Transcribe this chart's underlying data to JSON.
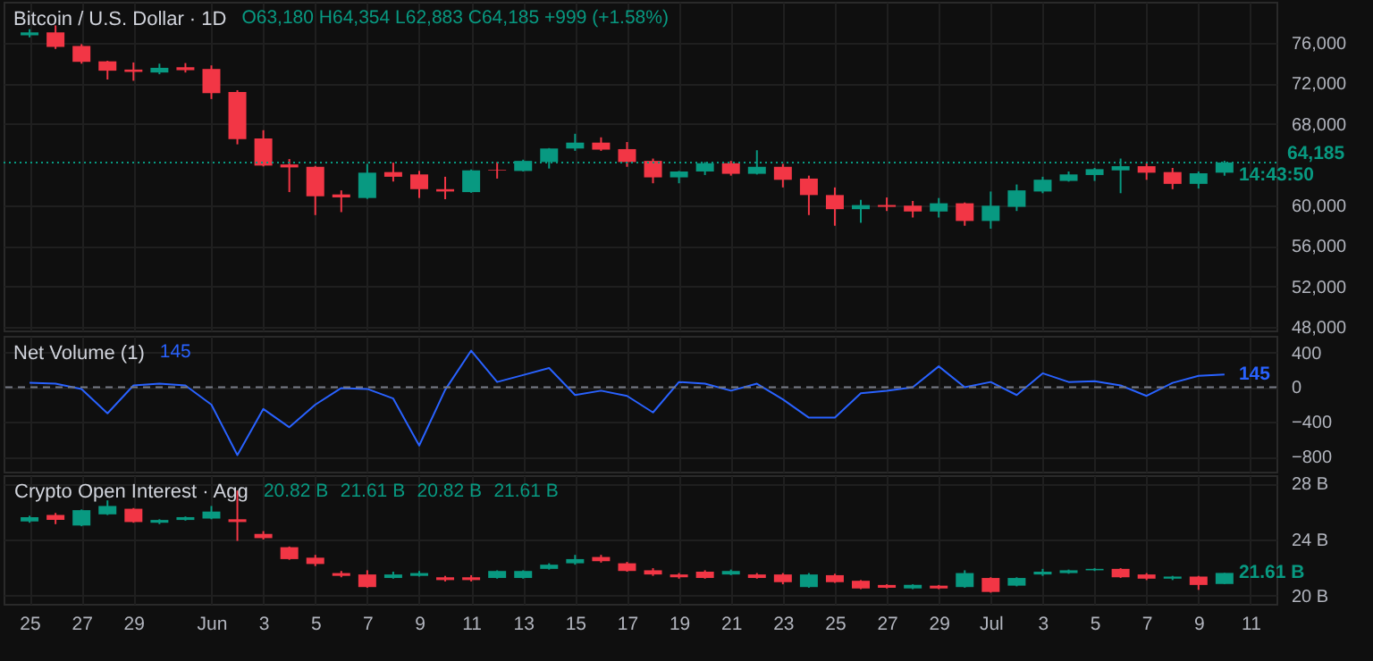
{
  "chart_data": [
    {
      "type": "candlestick",
      "title": "Bitcoin / U.S. Dollar · 1D",
      "annotations": [
        "O63,180 H64,354 L62,883 C64,185 +999 (+1.58%)",
        {
          "text": "14:43:50",
          "x": "--07-10",
          "y": 64185
        }
      ],
      "x": [
        "--05-25",
        "--05-26",
        "--05-27",
        "--05-28",
        "--05-29",
        "--05-30",
        "--05-31",
        "--06-01",
        "--06-02",
        "--06-03",
        "--06-04",
        "--06-05",
        "--06-06",
        "--06-07",
        "--06-08",
        "--06-09",
        "--06-10",
        "--06-11",
        "--06-12",
        "--06-13",
        "--06-14",
        "--06-15",
        "--06-16",
        "--06-17",
        "--06-18",
        "--06-19",
        "--06-20",
        "--06-21",
        "--06-22",
        "--06-23",
        "--06-24",
        "--06-25",
        "--06-26",
        "--06-27",
        "--06-28",
        "--06-29",
        "--06-30",
        "--07-01",
        "--07-02",
        "--07-03",
        "--07-04",
        "--07-05",
        "--07-06",
        "--07-07",
        "--07-08",
        "--07-09",
        "--07-10"
      ],
      "ohlc": [
        [
          76700,
          77300,
          76500,
          77000
        ],
        [
          77000,
          77680,
          75360,
          75550
        ],
        [
          75650,
          75830,
          73910,
          74090
        ],
        [
          74140,
          74200,
          72350,
          73220
        ],
        [
          73330,
          74030,
          72230,
          73100
        ],
        [
          73040,
          73910,
          72870,
          73500
        ],
        [
          73560,
          73970,
          73040,
          73270
        ],
        [
          73390,
          73740,
          70430,
          71010
        ],
        [
          71130,
          71300,
          65970,
          66490
        ],
        [
          66550,
          67360,
          63800,
          63880
        ],
        [
          63990,
          64520,
          61270,
          63700
        ],
        [
          63760,
          63850,
          59010,
          60860
        ],
        [
          61040,
          61440,
          59300,
          60750
        ],
        [
          60690,
          64050,
          60600,
          63180
        ],
        [
          63240,
          64170,
          62310,
          62780
        ],
        [
          63010,
          63360,
          60690,
          61560
        ],
        [
          61560,
          62780,
          60570,
          61330
        ],
        [
          61270,
          63500,
          61200,
          63410
        ],
        [
          63470,
          64230,
          62600,
          63410
        ],
        [
          63350,
          64460,
          63300,
          64340
        ],
        [
          64230,
          65600,
          63590,
          65560
        ],
        [
          65560,
          67010,
          65330,
          66140
        ],
        [
          66140,
          66660,
          65330,
          65450
        ],
        [
          65500,
          66200,
          63760,
          64230
        ],
        [
          64340,
          64570,
          62140,
          62720
        ],
        [
          62720,
          63350,
          62140,
          63300
        ],
        [
          63300,
          64230,
          62950,
          64110
        ],
        [
          64110,
          64340,
          62890,
          63070
        ],
        [
          63070,
          65390,
          63000,
          63760
        ],
        [
          63760,
          64050,
          61730,
          62480
        ],
        [
          62600,
          62890,
          59010,
          60980
        ],
        [
          60980,
          61730,
          57960,
          59590
        ],
        [
          59590,
          60510,
          58250,
          59990
        ],
        [
          60000,
          60740,
          59410,
          59820
        ],
        [
          59930,
          60400,
          58770,
          59360
        ],
        [
          59360,
          60690,
          58770,
          60170
        ],
        [
          60170,
          60250,
          57960,
          58430
        ],
        [
          58430,
          61330,
          57670,
          59930
        ],
        [
          59820,
          62020,
          59410,
          61440
        ],
        [
          61330,
          62780,
          61160,
          62490
        ],
        [
          62370,
          63300,
          62300,
          63010
        ],
        [
          62950,
          63650,
          62370,
          63530
        ],
        [
          63410,
          64570,
          61160,
          63820
        ],
        [
          63820,
          64110,
          62480,
          63180
        ],
        [
          63240,
          63650,
          61560,
          62080
        ],
        [
          62080,
          63300,
          61620,
          63120
        ],
        [
          63180,
          64354,
          62883,
          64185
        ]
      ],
      "colors": [
        "#089981",
        "#f23645",
        "#f23645",
        "#f23645",
        "#f23645",
        "#089981",
        "#f23645",
        "#f23645",
        "#f23645",
        "#f23645",
        "#f23645",
        "#f23645",
        "#f23645",
        "#089981",
        "#f23645",
        "#f23645",
        "#f23645",
        "#089981",
        "#f23645",
        "#089981",
        "#089981",
        "#089981",
        "#f23645",
        "#f23645",
        "#f23645",
        "#089981",
        "#089981",
        "#f23645",
        "#089981",
        "#f23645",
        "#f23645",
        "#f23645",
        "#089981",
        "#f23645",
        "#f23645",
        "#089981",
        "#f23645",
        "#089981",
        "#089981",
        "#089981",
        "#089981",
        "#089981",
        "#089981",
        "#f23645",
        "#f23645",
        "#089981",
        "#089981"
      ],
      "xlim": [
        "--05-24",
        "--07-12"
      ],
      "xticks": [
        {
          "value": "--05-25",
          "label": "25"
        },
        {
          "value": "--05-27",
          "label": "27"
        },
        {
          "value": "--05-29",
          "label": "29"
        },
        {
          "value": "--06-01",
          "label": "Jun"
        },
        {
          "value": "--06-03",
          "label": "3"
        },
        {
          "value": "--06-05",
          "label": "5"
        },
        {
          "value": "--06-07",
          "label": "7"
        },
        {
          "value": "--06-09",
          "label": "9"
        },
        {
          "value": "--06-11",
          "label": "11"
        },
        {
          "value": "--06-13",
          "label": "13"
        },
        {
          "value": "--06-15",
          "label": "15"
        },
        {
          "value": "--06-17",
          "label": "17"
        },
        {
          "value": "--06-19",
          "label": "19"
        },
        {
          "value": "--06-21",
          "label": "21"
        },
        {
          "value": "--06-23",
          "label": "23"
        },
        {
          "value": "--06-25",
          "label": "25"
        },
        {
          "value": "--06-27",
          "label": "27"
        },
        {
          "value": "--06-29",
          "label": "29"
        },
        {
          "value": "--07-01",
          "label": "Jul"
        },
        {
          "value": "--07-03",
          "label": "3"
        },
        {
          "value": "--07-05",
          "label": "5"
        },
        {
          "value": "--07-07",
          "label": "7"
        },
        {
          "value": "--07-09",
          "label": "9"
        },
        {
          "value": "--07-11",
          "label": "11"
        }
      ],
      "ylim": [
        47650,
        80000
      ],
      "yticks": [
        {
          "value": 48000,
          "label": "48,000"
        },
        {
          "value": 52000,
          "label": "52,000"
        },
        {
          "value": 56000,
          "label": "56,000"
        },
        {
          "value": 60000,
          "label": "60,000"
        },
        {
          "value": 68000,
          "label": "68,000"
        },
        {
          "value": 72000,
          "label": "72,000"
        },
        {
          "value": 76000,
          "label": "76,000"
        }
      ],
      "ref_lines": [
        {
          "axis": "y",
          "value": 64185,
          "label": "64,185",
          "color": "#089981",
          "line_style": "dotted"
        }
      ],
      "grid": true,
      "tick_labels": "y"
    },
    {
      "type": "line",
      "title": "Net Volume (1)",
      "annotations": [
        "145",
        {
          "text": "145",
          "x": "--07-10",
          "y": 145
        }
      ],
      "x": [
        "--05-25",
        "--05-26",
        "--05-27",
        "--05-28",
        "--05-29",
        "--05-30",
        "--05-31",
        "--06-01",
        "--06-02",
        "--06-03",
        "--06-04",
        "--06-05",
        "--06-06",
        "--06-07",
        "--06-08",
        "--06-09",
        "--06-10",
        "--06-11",
        "--06-12",
        "--06-13",
        "--06-14",
        "--06-15",
        "--06-16",
        "--06-17",
        "--06-18",
        "--06-19",
        "--06-20",
        "--06-21",
        "--06-22",
        "--06-23",
        "--06-24",
        "--06-25",
        "--06-26",
        "--06-27",
        "--06-28",
        "--06-29",
        "--06-30",
        "--07-01",
        "--07-02",
        "--07-03",
        "--07-04",
        "--07-05",
        "--07-06",
        "--07-07",
        "--07-08",
        "--07-09",
        "--07-10"
      ],
      "series": [
        {
          "color": "#2962ff",
          "values": [
            50,
            40,
            -20,
            -300,
            20,
            40,
            20,
            -200,
            -780,
            -250,
            -460,
            -200,
            -10,
            -20,
            -130,
            -670,
            -30,
            420,
            60,
            140,
            220,
            -90,
            -40,
            -100,
            -290,
            60,
            40,
            -40,
            40,
            -140,
            -350,
            -350,
            -70,
            -40,
            0,
            240,
            0,
            60,
            -90,
            160,
            60,
            70,
            20,
            -100,
            50,
            130,
            145
          ]
        }
      ],
      "xlim": [
        "--05-24",
        "--07-12"
      ],
      "xticks": [
        {
          "value": "--05-25",
          "label": "25"
        },
        {
          "value": "--05-27",
          "label": "27"
        },
        {
          "value": "--05-29",
          "label": "29"
        },
        {
          "value": "--06-01",
          "label": "Jun"
        },
        {
          "value": "--06-03",
          "label": "3"
        },
        {
          "value": "--06-05",
          "label": "5"
        },
        {
          "value": "--06-07",
          "label": "7"
        },
        {
          "value": "--06-09",
          "label": "9"
        },
        {
          "value": "--06-11",
          "label": "11"
        },
        {
          "value": "--06-13",
          "label": "13"
        },
        {
          "value": "--06-15",
          "label": "15"
        },
        {
          "value": "--06-17",
          "label": "17"
        },
        {
          "value": "--06-19",
          "label": "19"
        },
        {
          "value": "--06-21",
          "label": "21"
        },
        {
          "value": "--06-23",
          "label": "23"
        },
        {
          "value": "--06-25",
          "label": "25"
        },
        {
          "value": "--06-27",
          "label": "27"
        },
        {
          "value": "--06-29",
          "label": "29"
        },
        {
          "value": "--07-01",
          "label": "Jul"
        },
        {
          "value": "--07-03",
          "label": "3"
        },
        {
          "value": "--07-05",
          "label": "5"
        },
        {
          "value": "--07-07",
          "label": "7"
        },
        {
          "value": "--07-09",
          "label": "9"
        },
        {
          "value": "--07-11",
          "label": "11"
        }
      ],
      "ylim": [
        -970,
        590
      ],
      "yticks": [
        -800,
        -400,
        0,
        400
      ],
      "ref_lines": [
        {
          "axis": "y",
          "value": 0,
          "color": "#787b86",
          "line_style": "dashed"
        }
      ],
      "grid": true,
      "tick_labels": "y"
    },
    {
      "type": "candlestick",
      "title": "Crypto Open Interest · Agg",
      "annotations": [
        "20.82 B",
        "21.61 B",
        "20.82 B",
        "21.61 B",
        {
          "text": "21.61 B",
          "x": "--07-10",
          "y": 21.61
        }
      ],
      "x": [
        "--05-25",
        "--05-26",
        "--05-27",
        "--05-28",
        "--05-29",
        "--05-30",
        "--05-31",
        "--06-01",
        "--06-02",
        "--06-03",
        "--06-04",
        "--06-05",
        "--06-06",
        "--06-07",
        "--06-08",
        "--06-09",
        "--06-10",
        "--06-11",
        "--06-12",
        "--06-13",
        "--06-14",
        "--06-15",
        "--06-16",
        "--06-17",
        "--06-18",
        "--06-19",
        "--06-20",
        "--06-21",
        "--06-22",
        "--06-23",
        "--06-24",
        "--06-25",
        "--06-26",
        "--06-27",
        "--06-28",
        "--06-29",
        "--06-30",
        "--07-01",
        "--07-02",
        "--07-03",
        "--07-04",
        "--07-05",
        "--07-06",
        "--07-07",
        "--07-08",
        "--07-09",
        "--07-10"
      ],
      "ohlc": [
        [
          25.3,
          25.7,
          25.2,
          25.6
        ],
        [
          25.75,
          25.9,
          25.1,
          25.4
        ],
        [
          25.0,
          26.15,
          24.95,
          26.1
        ],
        [
          25.8,
          26.8,
          25.75,
          26.4
        ],
        [
          26.2,
          26.25,
          25.2,
          25.25
        ],
        [
          25.2,
          25.45,
          25.1,
          25.4
        ],
        [
          25.4,
          25.65,
          25.35,
          25.6
        ],
        [
          25.5,
          26.4,
          25.45,
          26.0
        ],
        [
          25.45,
          27.5,
          23.9,
          25.25
        ],
        [
          24.4,
          24.6,
          24.0,
          24.1
        ],
        [
          23.45,
          23.5,
          22.55,
          22.6
        ],
        [
          22.7,
          22.9,
          22.1,
          22.25
        ],
        [
          21.6,
          21.75,
          21.3,
          21.4
        ],
        [
          21.5,
          21.8,
          20.55,
          20.6
        ],
        [
          21.25,
          21.7,
          21.2,
          21.5
        ],
        [
          21.4,
          21.75,
          21.35,
          21.6
        ],
        [
          21.3,
          21.4,
          21.0,
          21.1
        ],
        [
          21.3,
          21.45,
          21.0,
          21.1
        ],
        [
          21.25,
          21.8,
          21.2,
          21.75
        ],
        [
          21.25,
          21.8,
          21.2,
          21.75
        ],
        [
          21.9,
          22.3,
          21.85,
          22.2
        ],
        [
          22.3,
          22.9,
          22.2,
          22.6
        ],
        [
          22.75,
          22.9,
          22.35,
          22.45
        ],
        [
          22.3,
          22.4,
          21.7,
          21.75
        ],
        [
          21.8,
          21.95,
          21.4,
          21.5
        ],
        [
          21.5,
          21.6,
          21.2,
          21.3
        ],
        [
          21.7,
          21.8,
          21.2,
          21.25
        ],
        [
          21.5,
          21.85,
          21.45,
          21.75
        ],
        [
          21.5,
          21.6,
          21.2,
          21.25
        ],
        [
          21.5,
          21.6,
          20.8,
          20.95
        ],
        [
          20.6,
          21.6,
          20.55,
          21.5
        ],
        [
          21.45,
          21.55,
          20.9,
          20.95
        ],
        [
          21.05,
          21.1,
          20.45,
          20.5
        ],
        [
          20.75,
          20.8,
          20.5,
          20.55
        ],
        [
          20.5,
          20.8,
          20.45,
          20.75
        ],
        [
          20.7,
          20.75,
          20.45,
          20.5
        ],
        [
          20.6,
          21.8,
          20.55,
          21.6
        ],
        [
          21.25,
          21.3,
          20.2,
          20.25
        ],
        [
          20.7,
          21.3,
          20.65,
          21.25
        ],
        [
          21.5,
          21.9,
          21.4,
          21.7
        ],
        [
          21.6,
          21.85,
          21.55,
          21.8
        ],
        [
          21.8,
          21.95,
          21.75,
          21.9
        ],
        [
          21.9,
          21.95,
          21.25,
          21.3
        ],
        [
          21.5,
          21.6,
          21.1,
          21.2
        ],
        [
          21.2,
          21.4,
          21.1,
          21.35
        ],
        [
          21.35,
          21.4,
          20.4,
          20.75
        ],
        [
          20.82,
          21.61,
          20.82,
          21.61
        ]
      ],
      "colors": [
        "#089981",
        "#f23645",
        "#089981",
        "#089981",
        "#f23645",
        "#089981",
        "#089981",
        "#089981",
        "#f23645",
        "#f23645",
        "#f23645",
        "#f23645",
        "#f23645",
        "#f23645",
        "#089981",
        "#089981",
        "#f23645",
        "#f23645",
        "#089981",
        "#089981",
        "#089981",
        "#089981",
        "#f23645",
        "#f23645",
        "#f23645",
        "#f23645",
        "#f23645",
        "#089981",
        "#f23645",
        "#f23645",
        "#089981",
        "#f23645",
        "#f23645",
        "#f23645",
        "#089981",
        "#f23645",
        "#089981",
        "#f23645",
        "#089981",
        "#089981",
        "#089981",
        "#089981",
        "#f23645",
        "#f23645",
        "#089981",
        "#f23645",
        "#089981"
      ],
      "xlim": [
        "--05-24",
        "--07-12"
      ],
      "xticks": [
        {
          "value": "--05-25",
          "label": "25"
        },
        {
          "value": "--05-27",
          "label": "27"
        },
        {
          "value": "--05-29",
          "label": "29"
        },
        {
          "value": "--06-01",
          "label": "Jun"
        },
        {
          "value": "--06-03",
          "label": "3"
        },
        {
          "value": "--06-05",
          "label": "5"
        },
        {
          "value": "--06-07",
          "label": "7"
        },
        {
          "value": "--06-09",
          "label": "9"
        },
        {
          "value": "--06-11",
          "label": "11"
        },
        {
          "value": "--06-13",
          "label": "13"
        },
        {
          "value": "--06-15",
          "label": "15"
        },
        {
          "value": "--06-17",
          "label": "17"
        },
        {
          "value": "--06-19",
          "label": "19"
        },
        {
          "value": "--06-21",
          "label": "21"
        },
        {
          "value": "--06-23",
          "label": "23"
        },
        {
          "value": "--06-25",
          "label": "25"
        },
        {
          "value": "--06-27",
          "label": "27"
        },
        {
          "value": "--06-29",
          "label": "29"
        },
        {
          "value": "--07-01",
          "label": "Jul"
        },
        {
          "value": "--07-03",
          "label": "3"
        },
        {
          "value": "--07-05",
          "label": "5"
        },
        {
          "value": "--07-07",
          "label": "7"
        },
        {
          "value": "--07-09",
          "label": "9"
        },
        {
          "value": "--07-11",
          "label": "11"
        }
      ],
      "ylim": [
        19.4,
        28.6
      ],
      "yticks": [
        {
          "value": 20,
          "label": "20 B"
        },
        {
          "value": 24,
          "label": "24 B"
        },
        {
          "value": 28,
          "label": "28 B"
        }
      ],
      "grid": true
    }
  ]
}
